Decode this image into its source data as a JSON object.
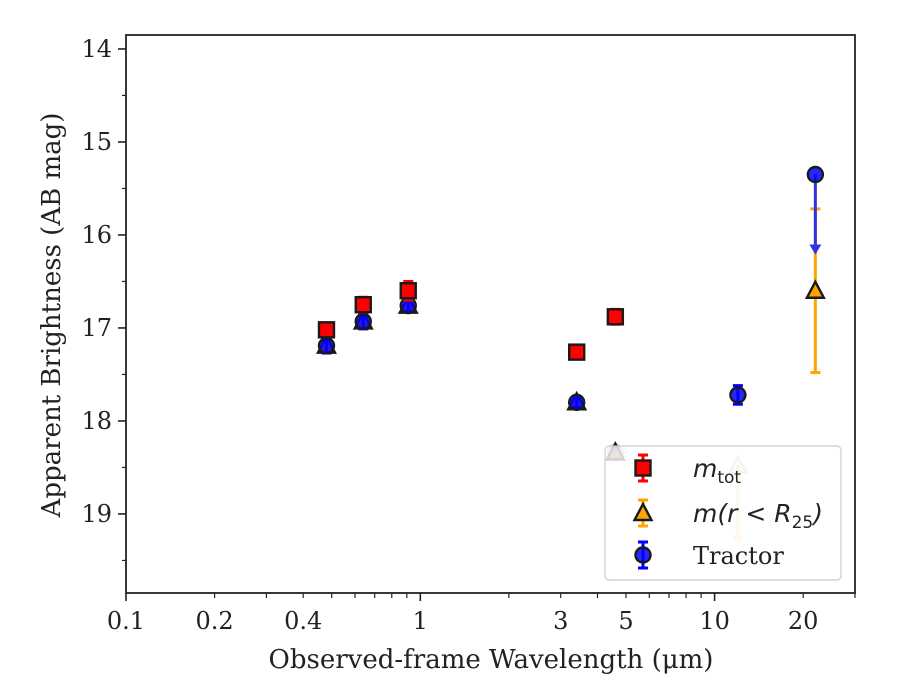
{
  "chart_data": {
    "type": "scatter",
    "xlabel": "Observed-frame Wavelength (μm)",
    "ylabel": "Apparent Brightness (AB mag)",
    "xscale": "log",
    "xlim": [
      0.1,
      30
    ],
    "ylim": [
      19.85,
      13.85
    ],
    "y_inverted": true,
    "grid": false,
    "legend_position": "lower-right",
    "x_ticks": [
      0.1,
      0.2,
      0.4,
      1,
      3,
      5,
      10,
      20
    ],
    "x_tick_labels": [
      "0.1",
      "0.2",
      "0.4",
      "1",
      "3",
      "5",
      "10",
      "20"
    ],
    "y_ticks": [
      14,
      15,
      16,
      17,
      18,
      19
    ],
    "y_tick_labels": [
      "14",
      "15",
      "16",
      "17",
      "18",
      "19"
    ],
    "series": [
      {
        "name_parts": [
          "m",
          "tot",
          ""
        ],
        "marker": "square",
        "color": "#ff0000",
        "edge": "#1a1a1a",
        "points": [
          {
            "x": 0.48,
            "y": 17.02,
            "err": 0.07
          },
          {
            "x": 0.64,
            "y": 16.75,
            "err": 0.08
          },
          {
            "x": 0.91,
            "y": 16.6,
            "err": 0.1
          },
          {
            "x": 3.4,
            "y": 17.26,
            "err": 0.06
          },
          {
            "x": 4.6,
            "y": 16.88,
            "err": 0.08
          }
        ]
      },
      {
        "name_parts": [
          "m",
          "",
          "(r < R",
          "25",
          ")"
        ],
        "marker": "triangle",
        "color": "#ffa500",
        "edge": "#1a1a1a",
        "points": [
          {
            "x": 0.48,
            "y": 17.19,
            "err": 0.05
          },
          {
            "x": 0.64,
            "y": 16.93,
            "err": 0.05
          },
          {
            "x": 0.91,
            "y": 16.76,
            "err": 0.05
          },
          {
            "x": 3.4,
            "y": 17.8,
            "err": 0.05
          },
          {
            "x": 4.6,
            "y": 18.34,
            "err": 0.05
          },
          {
            "x": 12.0,
            "y": 18.48,
            "err": 0.05,
            "upper_limit": true,
            "faded": true
          },
          {
            "x": 22.0,
            "y": 16.6,
            "err_low": 0.88,
            "err_high": 0.88
          }
        ]
      },
      {
        "name": "Tractor",
        "marker": "circle",
        "color": "#0000ff",
        "edge": "#1a1a1a",
        "points": [
          {
            "x": 0.48,
            "y": 17.19,
            "err": 0.08
          },
          {
            "x": 0.64,
            "y": 16.93,
            "err": 0.08
          },
          {
            "x": 0.91,
            "y": 16.76,
            "err": 0.06
          },
          {
            "x": 3.4,
            "y": 17.8,
            "err": 0.06
          },
          {
            "x": 4.6,
            "y": 18.34,
            "err": 0.06,
            "faded": true
          },
          {
            "x": 12.0,
            "y": 17.72,
            "err": 0.1
          },
          {
            "x": 22.0,
            "y": 15.35,
            "upper_limit": true
          }
        ]
      }
    ]
  }
}
